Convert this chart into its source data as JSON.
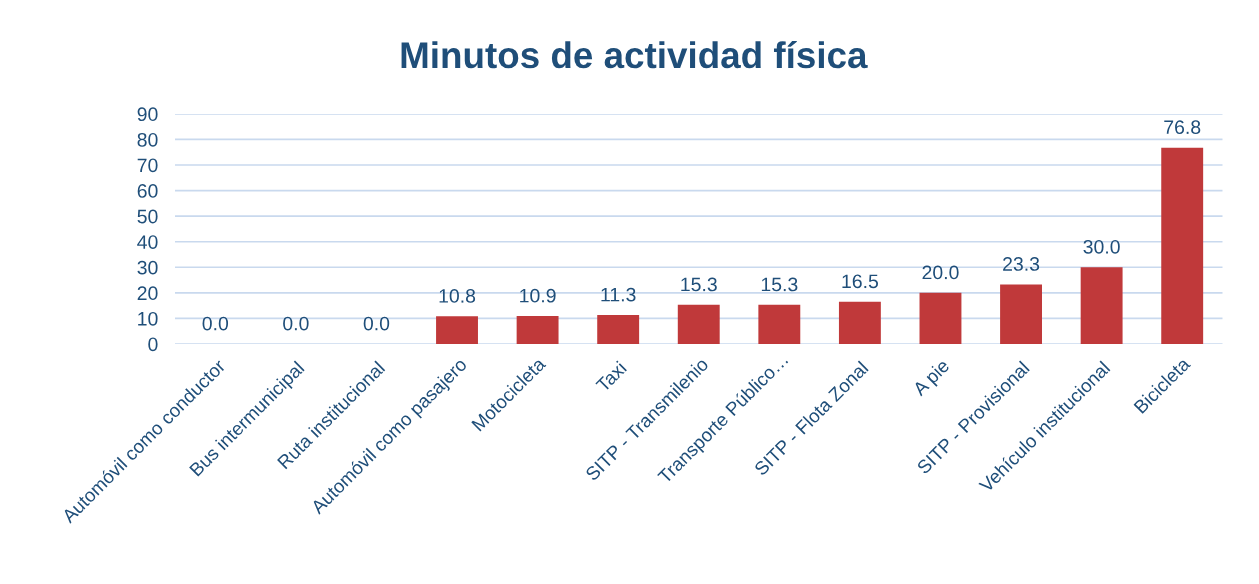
{
  "chart_data": {
    "type": "bar",
    "title": "Minutos de actividad física",
    "categories": [
      "Automóvil como conductor",
      "Bus intermunicipal",
      "Ruta institucional",
      "Automóvil como pasajero",
      "Motocicleta",
      "Taxi",
      "SITP - Transmilenio",
      "Transporte Público…",
      "SITP - Flota Zonal",
      "A pie",
      "SITP - Provisional",
      "Vehículo institucional",
      "Bicicleta"
    ],
    "values": [
      0.0,
      0.0,
      0.0,
      10.8,
      10.9,
      11.3,
      15.3,
      15.3,
      16.5,
      20.0,
      23.3,
      30.0,
      76.8
    ],
    "value_labels": [
      "0.0",
      "0.0",
      "0.0",
      "10.8",
      "10.9",
      "11.3",
      "15.3",
      "15.3",
      "16.5",
      "20.0",
      "23.3",
      "30.0",
      "76.8"
    ],
    "color": "#c0393a",
    "ylim": [
      0,
      90
    ],
    "yticks": [
      0,
      10,
      20,
      30,
      40,
      50,
      60,
      70,
      80,
      90
    ],
    "grid": "y",
    "legend": false
  }
}
